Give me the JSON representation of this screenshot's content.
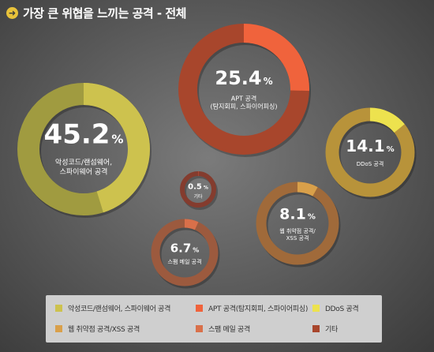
{
  "header": {
    "title": "가장 큰 위협을 느끼는 공격 - 전체",
    "icon": "arrow-right-circle-icon"
  },
  "chart_data": {
    "type": "donut",
    "title": "가장 큰 위협을 느끼는 공격 - 전체",
    "unit": "%",
    "series": [
      {
        "key": "malware",
        "name": "악성코드/랜섬웨어, 스파이웨어 공격",
        "value": 45.2,
        "value_text": "45.2",
        "chart_label": [
          "악성코드/랜섬웨어,",
          "스파이웨어 공격"
        ],
        "color": "#cdc24e",
        "track": "#a09b40"
      },
      {
        "key": "apt",
        "name": "APT 공격(탐지회피, 스파이어피싱)",
        "value": 25.4,
        "value_text": "25.4",
        "chart_label": [
          "APT 공격",
          "(탐지회피, 스파이어피싱)"
        ],
        "color": "#f0633c",
        "track": "#a8462c"
      },
      {
        "key": "ddos",
        "name": "DDoS 공격",
        "value": 14.1,
        "value_text": "14.1",
        "chart_label": [
          "DDoS 공격"
        ],
        "color": "#ede24e",
        "track": "#b8933a"
      },
      {
        "key": "web",
        "name": "웹 취약점 공격/XSS 공격",
        "value": 8.1,
        "value_text": "8.1",
        "chart_label": [
          "웹 취약점 공격/",
          "XSS 공격"
        ],
        "color": "#d9a04a",
        "track": "#a06a3a"
      },
      {
        "key": "spam",
        "name": "스팸 메일 공격",
        "value": 6.7,
        "value_text": "6.7",
        "chart_label": [
          "스팸 메일 공격"
        ],
        "color": "#d9704a",
        "track": "#9c5a3e"
      },
      {
        "key": "etc",
        "name": "기타",
        "value": 0.5,
        "value_text": "0.5",
        "chart_label": [
          "기타"
        ],
        "color": "#c0503a",
        "track": "#843c2e"
      }
    ]
  },
  "legend": {
    "items": [
      {
        "label": "악성코드/랜섬웨어, 스파이웨어 공격",
        "color": "#cdc24e"
      },
      {
        "label": "APT 공격(탐지회피, 스파이어피싱)",
        "color": "#f0633c"
      },
      {
        "label": "DDoS 공격",
        "color": "#ede24e"
      },
      {
        "label": "웹 취약점 공격/XSS 공격",
        "color": "#d9a04a"
      },
      {
        "label": "스팸 메일 공격",
        "color": "#d9704a"
      },
      {
        "label": "기타",
        "color": "#a8462c"
      }
    ]
  }
}
